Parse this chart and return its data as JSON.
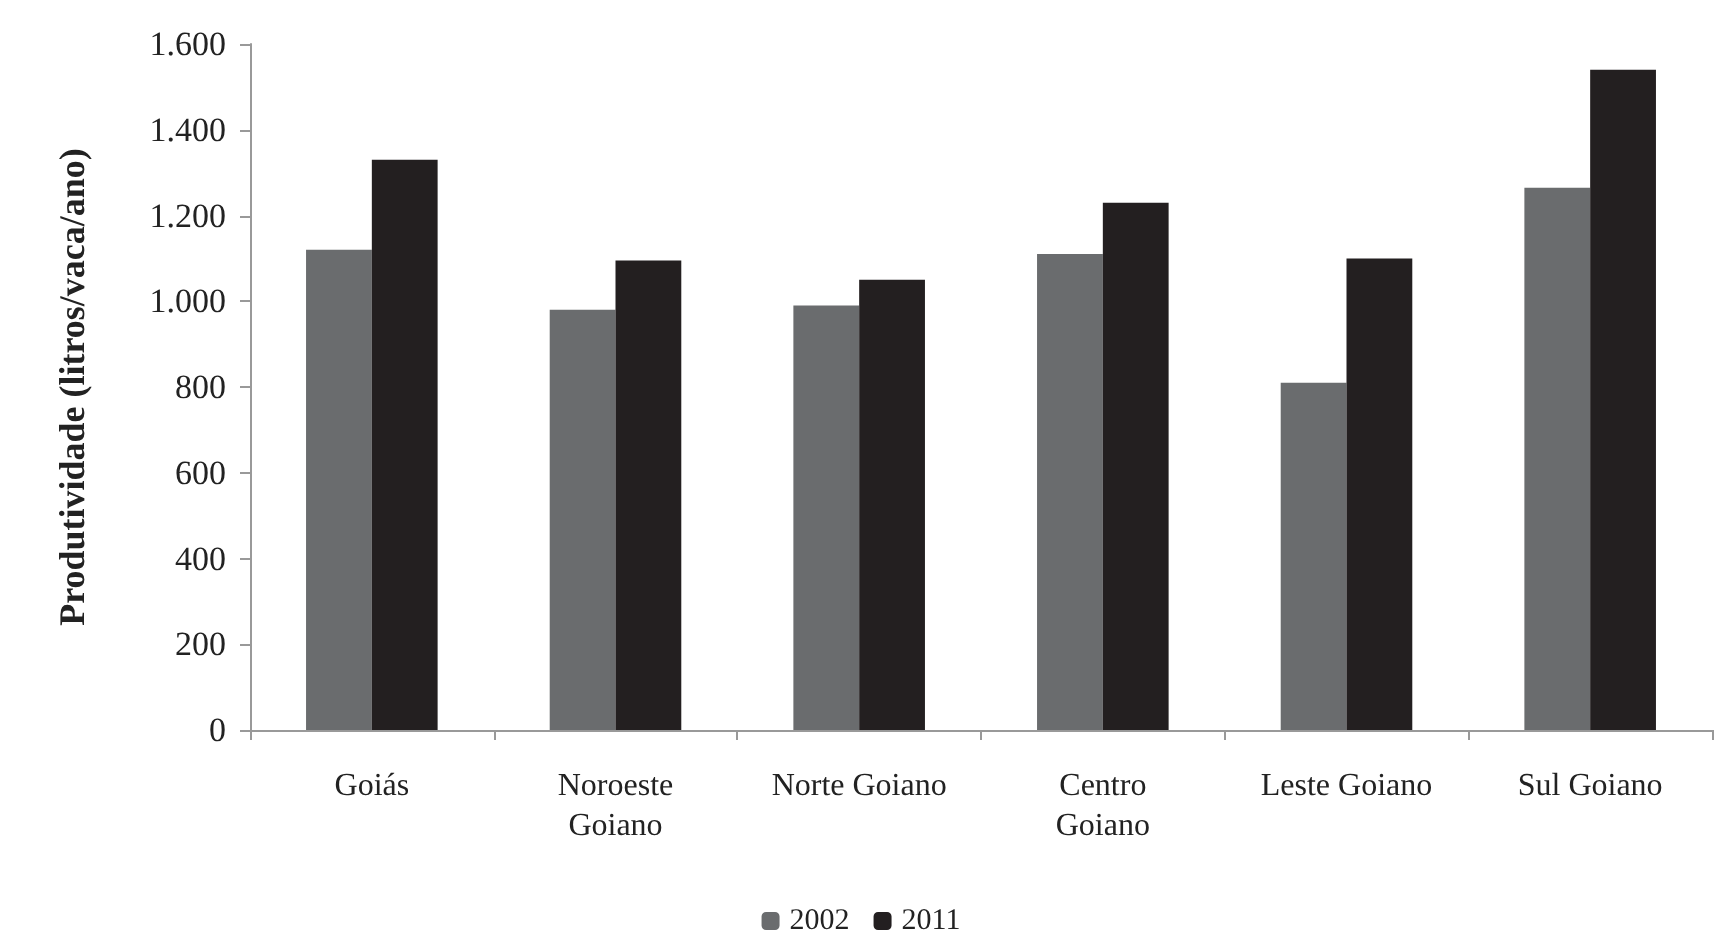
{
  "chart_data": {
    "type": "bar",
    "ylabel": "Produtividade (litros/vaca/ano)",
    "categories": [
      "Goiás",
      "Noroeste\nGoiano",
      "Norte Goiano",
      "Centro\nGoiano",
      "Leste Goiano",
      "Sul Goiano"
    ],
    "series": [
      {
        "name": "2002",
        "color": "#6a6c6e",
        "values": [
          1120,
          980,
          990,
          1110,
          810,
          1265
        ]
      },
      {
        "name": "2011",
        "color": "#231f20",
        "values": [
          1330,
          1095,
          1050,
          1230,
          1100,
          1540
        ]
      }
    ],
    "ylim": [
      0,
      1600
    ],
    "yticks": [
      0,
      200,
      400,
      600,
      800,
      {
        "value": 1000,
        "label": "1.000"
      },
      {
        "value": 1200,
        "label": "1.200"
      },
      {
        "value": 1400,
        "label": "1.400"
      },
      {
        "value": 1600,
        "label": "1.600"
      }
    ],
    "grid": false,
    "legend": "bottom"
  }
}
